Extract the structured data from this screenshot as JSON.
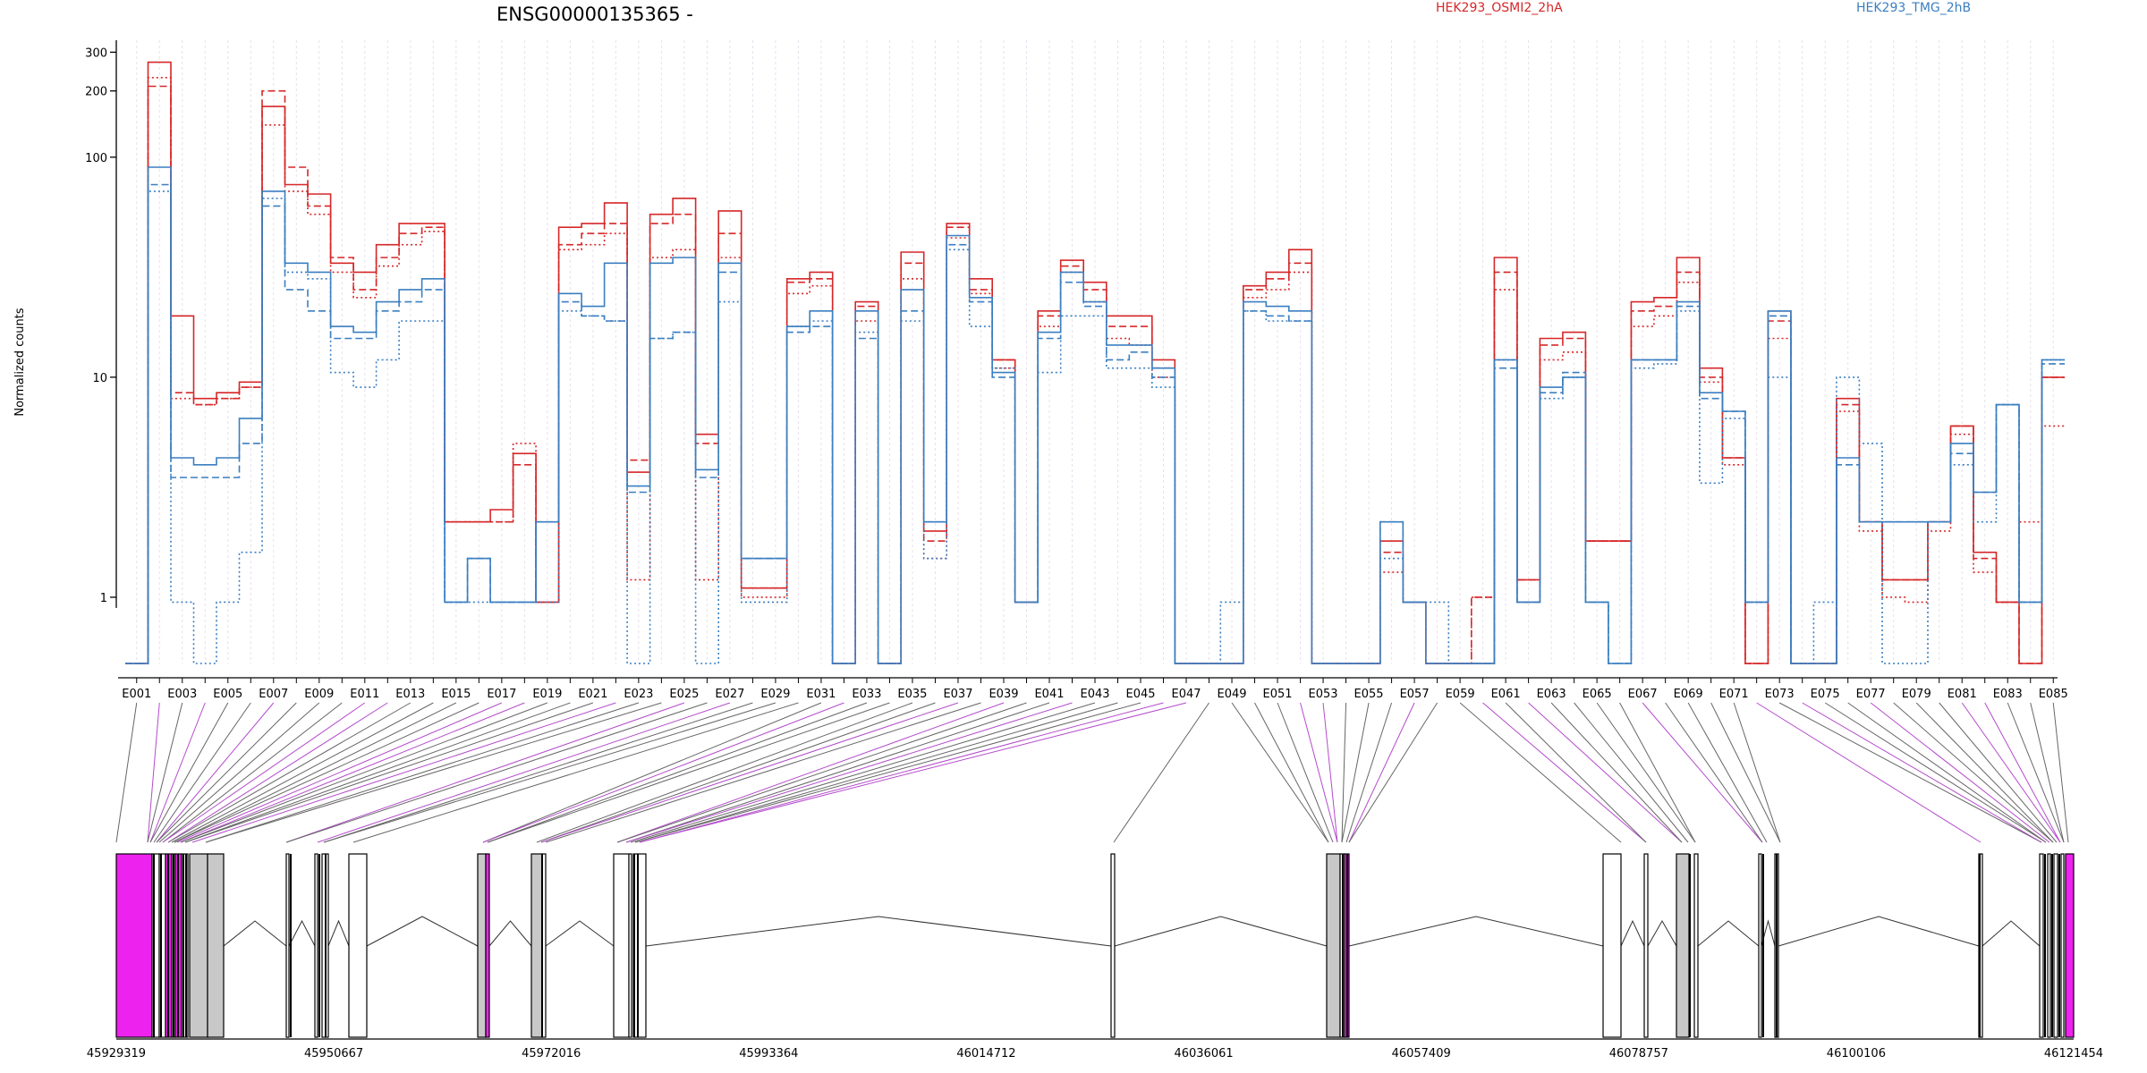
{
  "chart_data": {
    "type": "line",
    "title": "ENSG00000135365 -",
    "ylabel": "Normalized counts",
    "xlabel": "",
    "y_scale": "log",
    "y_range": [
      0.5,
      340
    ],
    "y_ticks": [
      1,
      10,
      100,
      200,
      300
    ],
    "y_tick_labels": [
      "1",
      "10",
      "100",
      "200",
      "300"
    ],
    "grid": "vertical dotted lines at each exon bin",
    "legend": {
      "placement": "top",
      "entries": [
        {
          "name": "HEK293_OSMI2_2hA",
          "color": "#d62728"
        },
        {
          "name": "HEK293_TMG_2hB",
          "color": "#3a7fc1"
        }
      ]
    },
    "x_ticks": [
      "E001",
      "E003",
      "E005",
      "E007",
      "E009",
      "E011",
      "E013",
      "E015",
      "E017",
      "E019",
      "E021",
      "E023",
      "E025",
      "E027",
      "E029",
      "E031",
      "E033",
      "E035",
      "E037",
      "E039",
      "E041",
      "E043",
      "E045",
      "E047",
      "E049",
      "E051",
      "E053",
      "E055",
      "E057",
      "E059",
      "E061",
      "E063",
      "E065",
      "E067",
      "E069",
      "E071",
      "E073",
      "E075",
      "E077",
      "E079",
      "E081",
      "E083",
      "E085"
    ],
    "series": [
      {
        "name": "HEK293_OSMI2_2hA",
        "color": "#d62728",
        "style": "solid",
        "values": [
          0.5,
          270,
          19,
          8,
          8.5,
          9.5,
          170,
          75,
          68,
          33,
          30,
          40,
          50,
          50,
          2.2,
          2.2,
          2.5,
          4.5,
          0.95,
          48,
          50,
          62,
          3.7,
          55,
          65,
          5.5,
          57,
          1.1,
          1.1,
          28,
          30,
          0.5,
          22,
          0.5,
          37,
          2.0,
          50,
          28,
          12,
          0.95,
          20,
          34,
          27,
          19,
          19,
          12,
          0.5,
          0.5,
          0.5,
          26,
          30,
          38,
          0.5,
          0.5,
          0.5,
          1.8,
          0.95,
          0.5,
          0.5,
          0.5,
          35,
          1.2,
          15,
          16,
          1.8,
          1.8,
          22,
          23,
          35,
          11,
          4.3,
          0.5,
          20,
          0.5,
          0.5,
          8,
          2.2,
          1.2,
          1.2,
          2.2,
          6,
          1.6,
          0.95,
          0.5,
          10
        ]
      },
      {
        "name": "HEK293_OSMI2_2hA",
        "color": "#d62728",
        "style": "dashed",
        "values": [
          0.5,
          210,
          8.5,
          7.5,
          8,
          9,
          200,
          90,
          60,
          35,
          25,
          35,
          45,
          48,
          2.2,
          2.2,
          2.2,
          4,
          0.95,
          40,
          45,
          50,
          4.2,
          50,
          55,
          5,
          45,
          1.1,
          1.1,
          27,
          28,
          0.5,
          21,
          0.5,
          33,
          1.8,
          48,
          25,
          12,
          0.95,
          19,
          32,
          25,
          17,
          17,
          11,
          0.5,
          0.5,
          0.5,
          25,
          28,
          33,
          0.5,
          0.5,
          0.5,
          1.6,
          0.95,
          0.5,
          0.5,
          1.0,
          30,
          1.2,
          14,
          15,
          1.8,
          1.8,
          20,
          21,
          30,
          10,
          4.3,
          0.5,
          18,
          0.5,
          0.5,
          7.5,
          2.2,
          1.2,
          1.2,
          2.2,
          6,
          1.5,
          0.95,
          0.5,
          10
        ]
      },
      {
        "name": "HEK293_OSMI2_2hA",
        "color": "#d62728",
        "style": "dotted",
        "values": [
          0.5,
          230,
          8,
          7.5,
          8,
          9,
          140,
          70,
          55,
          30,
          23,
          32,
          40,
          46,
          2.2,
          2.2,
          2.2,
          5,
          0.95,
          38,
          40,
          45,
          1.2,
          35,
          38,
          1.2,
          35,
          1.0,
          1.0,
          24,
          26,
          0.5,
          18,
          0.5,
          28,
          1.5,
          43,
          24,
          11,
          0.95,
          17,
          30,
          22,
          15,
          14,
          10,
          0.5,
          0.5,
          0.5,
          23,
          25,
          30,
          0.5,
          0.5,
          0.5,
          1.3,
          0.95,
          0.5,
          0.5,
          1.0,
          25,
          0.95,
          12,
          13,
          1.8,
          1.8,
          17,
          19,
          27,
          9.5,
          4.0,
          0.5,
          15,
          0.5,
          0.5,
          7,
          2.0,
          1.0,
          0.95,
          2.0,
          5.5,
          1.3,
          0.95,
          2.2,
          6
        ]
      },
      {
        "name": "HEK293_TMG_2hB",
        "color": "#3a7fc1",
        "style": "solid",
        "values": [
          0.5,
          90,
          4.3,
          4,
          4.3,
          6.5,
          70,
          33,
          30,
          17,
          16,
          22,
          25,
          28,
          0.95,
          1.5,
          0.95,
          0.95,
          2.2,
          24,
          21,
          33,
          3.2,
          33,
          35,
          3.8,
          33,
          1.5,
          1.5,
          17,
          20,
          0.5,
          20,
          0.5,
          25,
          2.2,
          44,
          23,
          10.5,
          0.95,
          16,
          30,
          22,
          14,
          14,
          11,
          0.5,
          0.5,
          0.5,
          22,
          21,
          20,
          0.5,
          0.5,
          0.5,
          2.2,
          0.95,
          0.5,
          0.5,
          0.5,
          12,
          0.95,
          9,
          10,
          0.95,
          0.5,
          12,
          12,
          22,
          8.5,
          7,
          0.95,
          20,
          0.5,
          0.5,
          4.3,
          2.2,
          2.2,
          2.2,
          2.2,
          5,
          3,
          7.5,
          0.95,
          12
        ]
      },
      {
        "name": "HEK293_TMG_2hB",
        "color": "#3a7fc1",
        "style": "dashed",
        "values": [
          0.5,
          75,
          3.5,
          3.5,
          3.5,
          5,
          60,
          25,
          20,
          15,
          15,
          20,
          22,
          25,
          0.95,
          1.5,
          0.95,
          0.95,
          2.2,
          22,
          19,
          18,
          3,
          15,
          16,
          3.5,
          30,
          1.5,
          1.5,
          16,
          17,
          0.5,
          15,
          0.5,
          20,
          2.2,
          40,
          22,
          10,
          0.95,
          15,
          27,
          21,
          12,
          13,
          10,
          0.5,
          0.5,
          0.5,
          20,
          19,
          18,
          0.5,
          0.5,
          0.5,
          2.2,
          0.95,
          0.5,
          0.5,
          0.5,
          11,
          0.95,
          8.5,
          10.5,
          0.95,
          0.5,
          12,
          12,
          21,
          8,
          7,
          0.95,
          19,
          0.5,
          0.5,
          4,
          2.2,
          2.2,
          2.2,
          2.2,
          4.5,
          3,
          7.5,
          0.95,
          11.5
        ]
      },
      {
        "name": "HEK293_TMG_2hB",
        "color": "#3a7fc1",
        "style": "dotted",
        "values": [
          0.5,
          70,
          0.95,
          0.5,
          0.95,
          1.6,
          65,
          30,
          28,
          10.5,
          9,
          12,
          18,
          18,
          0.95,
          0.95,
          0.95,
          0.95,
          0.95,
          20,
          19,
          18,
          0.5,
          15,
          16,
          0.5,
          22,
          0.95,
          0.95,
          17,
          18,
          0.5,
          16,
          0.5,
          18,
          1.5,
          38,
          17,
          11,
          0.95,
          10.5,
          19,
          19,
          11,
          11,
          9,
          0.5,
          0.5,
          0.95,
          20,
          18,
          18,
          0.5,
          0.5,
          0.5,
          1.5,
          0.95,
          0.95,
          0.5,
          0.5,
          12,
          0.95,
          8,
          10,
          0.95,
          0.5,
          11,
          11.5,
          20,
          3.3,
          6.5,
          0.95,
          10,
          0.5,
          0.95,
          10,
          5,
          0.5,
          0.5,
          2.2,
          4,
          2.2,
          7.5,
          0.95,
          12
        ]
      }
    ],
    "genome_coords": [
      "45929319",
      "45950667",
      "45972016",
      "45993364",
      "46014712",
      "46036061",
      "46057409",
      "46078757",
      "46100106",
      "46121454"
    ],
    "genome_range": [
      45929319,
      46121454
    ],
    "annotation_colors": {
      "magenta": "#ee22ee",
      "grey": "#c8c8c8",
      "outline": "#000000"
    }
  }
}
